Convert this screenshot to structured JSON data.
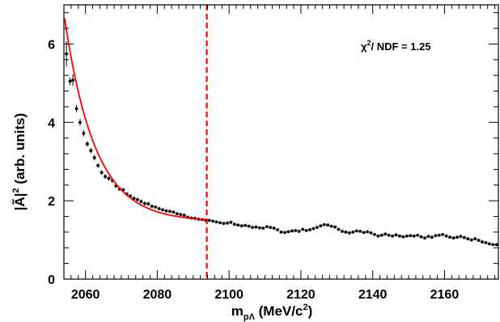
{
  "chart_data": {
    "type": "scatter",
    "xlabel": "m",
    "xlabel_sub": "pΛ",
    "xlabel_unit": " (MeV/c",
    "xlabel_sup": "2",
    "xlabel_close": ")",
    "ylabel": "|Ã|",
    "ylabel_sup": "2",
    "ylabel_rest": " (arb. units)",
    "annotation": {
      "text": "χ",
      "sup": "2",
      "rest": "/ NDF = 1.25"
    },
    "xlim": [
      2054,
      2175
    ],
    "ylim": [
      0,
      7
    ],
    "xticks": [
      2060,
      2080,
      2100,
      2120,
      2140,
      2160
    ],
    "yticks": [
      0,
      2,
      4,
      6
    ],
    "cut_line": {
      "x": 2093.8,
      "color": "#ff0000",
      "style": "dashed"
    },
    "fit": {
      "color": "#ff0000",
      "range": [
        2054.2,
        2093.8
      ],
      "model": "exponential",
      "params": {
        "a": 1.47,
        "b": 4.72,
        "tau": 8.5,
        "x0": 2055
      }
    },
    "series": [
      {
        "color": "#000000",
        "points": [
          [
            2054.7,
            5.75,
            0.32
          ],
          [
            2055.7,
            5.05,
            0.1
          ],
          [
            2056.5,
            5.08,
            0.15
          ],
          [
            2057.5,
            4.35,
            0.09
          ],
          [
            2058.5,
            4.0,
            0.09
          ],
          [
            2059.5,
            3.72,
            0.08
          ],
          [
            2060.5,
            3.45,
            0.07
          ],
          [
            2061.5,
            3.28,
            0.07
          ],
          [
            2062.5,
            3.1,
            0.07
          ],
          [
            2063.5,
            2.9,
            0.06
          ],
          [
            2064.5,
            2.72,
            0.06
          ],
          [
            2065.5,
            2.62,
            0.06
          ],
          [
            2066.5,
            2.57,
            0.06
          ],
          [
            2067.5,
            2.52,
            0.06
          ],
          [
            2068.5,
            2.38,
            0.05
          ],
          [
            2069.5,
            2.3,
            0.05
          ],
          [
            2070.5,
            2.28,
            0.05
          ],
          [
            2071.5,
            2.17,
            0.05
          ],
          [
            2072.5,
            2.12,
            0.05
          ],
          [
            2073.5,
            2.06,
            0.05
          ],
          [
            2074.5,
            2.03,
            0.05
          ],
          [
            2075.5,
            1.98,
            0.05
          ],
          [
            2076.5,
            1.93,
            0.05
          ],
          [
            2077.5,
            1.92,
            0.05
          ],
          [
            2078.5,
            1.86,
            0.04
          ],
          [
            2079.5,
            1.84,
            0.04
          ],
          [
            2080.5,
            1.8,
            0.04
          ],
          [
            2081.5,
            1.77,
            0.04
          ],
          [
            2082.5,
            1.74,
            0.04
          ],
          [
            2083.5,
            1.73,
            0.04
          ],
          [
            2084.5,
            1.71,
            0.04
          ],
          [
            2085.5,
            1.67,
            0.04
          ],
          [
            2086.5,
            1.65,
            0.04
          ],
          [
            2087.5,
            1.63,
            0.04
          ],
          [
            2088.5,
            1.58,
            0.04
          ],
          [
            2089.5,
            1.56,
            0.04
          ],
          [
            2090.5,
            1.55,
            0.04
          ],
          [
            2091.5,
            1.53,
            0.04
          ],
          [
            2092.5,
            1.52,
            0.04
          ],
          [
            2093.5,
            1.5,
            0.04
          ],
          [
            2094.5,
            1.5,
            0.04
          ],
          [
            2095.5,
            1.48,
            0.04
          ],
          [
            2096.5,
            1.46,
            0.04
          ],
          [
            2097.5,
            1.44,
            0.04
          ],
          [
            2098.5,
            1.42,
            0.04
          ],
          [
            2099.5,
            1.43,
            0.04
          ],
          [
            2100.5,
            1.45,
            0.04
          ],
          [
            2101.5,
            1.4,
            0.04
          ],
          [
            2102.5,
            1.38,
            0.04
          ],
          [
            2103.5,
            1.36,
            0.04
          ],
          [
            2104.5,
            1.37,
            0.04
          ],
          [
            2105.5,
            1.35,
            0.04
          ],
          [
            2106.5,
            1.32,
            0.04
          ],
          [
            2107.5,
            1.33,
            0.04
          ],
          [
            2108.5,
            1.31,
            0.04
          ],
          [
            2109.5,
            1.3,
            0.04
          ],
          [
            2110.5,
            1.34,
            0.04
          ],
          [
            2111.5,
            1.32,
            0.04
          ],
          [
            2112.5,
            1.3,
            0.04
          ],
          [
            2113.5,
            1.26,
            0.04
          ],
          [
            2114.5,
            1.2,
            0.04
          ],
          [
            2115.5,
            1.19,
            0.04
          ],
          [
            2116.5,
            1.21,
            0.04
          ],
          [
            2117.5,
            1.23,
            0.04
          ],
          [
            2118.5,
            1.24,
            0.04
          ],
          [
            2119.5,
            1.22,
            0.04
          ],
          [
            2120.5,
            1.27,
            0.04
          ],
          [
            2121.5,
            1.24,
            0.04
          ],
          [
            2122.5,
            1.26,
            0.04
          ],
          [
            2123.5,
            1.29,
            0.04
          ],
          [
            2124.5,
            1.32,
            0.04
          ],
          [
            2125.5,
            1.36,
            0.04
          ],
          [
            2126.5,
            1.39,
            0.04
          ],
          [
            2127.5,
            1.38,
            0.04
          ],
          [
            2128.5,
            1.35,
            0.04
          ],
          [
            2129.5,
            1.33,
            0.04
          ],
          [
            2130.5,
            1.27,
            0.04
          ],
          [
            2131.5,
            1.22,
            0.04
          ],
          [
            2132.5,
            1.2,
            0.04
          ],
          [
            2133.5,
            1.18,
            0.04
          ],
          [
            2134.5,
            1.2,
            0.04
          ],
          [
            2135.5,
            1.23,
            0.04
          ],
          [
            2136.5,
            1.22,
            0.04
          ],
          [
            2137.5,
            1.19,
            0.04
          ],
          [
            2138.5,
            1.21,
            0.04
          ],
          [
            2139.5,
            1.18,
            0.04
          ],
          [
            2140.5,
            1.14,
            0.04
          ],
          [
            2141.5,
            1.1,
            0.04
          ],
          [
            2142.5,
            1.12,
            0.04
          ],
          [
            2143.5,
            1.15,
            0.04
          ],
          [
            2144.5,
            1.12,
            0.04
          ],
          [
            2145.5,
            1.1,
            0.04
          ],
          [
            2146.5,
            1.13,
            0.04
          ],
          [
            2147.5,
            1.1,
            0.04
          ],
          [
            2148.5,
            1.08,
            0.04
          ],
          [
            2149.5,
            1.1,
            0.04
          ],
          [
            2150.5,
            1.11,
            0.04
          ],
          [
            2151.5,
            1.1,
            0.04
          ],
          [
            2152.5,
            1.12,
            0.04
          ],
          [
            2153.5,
            1.08,
            0.04
          ],
          [
            2154.5,
            1.05,
            0.04
          ],
          [
            2155.5,
            1.09,
            0.04
          ],
          [
            2156.5,
            1.07,
            0.04
          ],
          [
            2157.5,
            1.11,
            0.04
          ],
          [
            2158.5,
            1.12,
            0.04
          ],
          [
            2159.5,
            1.14,
            0.04
          ],
          [
            2160.5,
            1.1,
            0.04
          ],
          [
            2161.5,
            1.07,
            0.04
          ],
          [
            2162.5,
            1.05,
            0.04
          ],
          [
            2163.5,
            1.07,
            0.04
          ],
          [
            2164.5,
            1.09,
            0.04
          ],
          [
            2165.5,
            1.06,
            0.04
          ],
          [
            2166.5,
            1.03,
            0.04
          ],
          [
            2167.5,
            1.0,
            0.04
          ],
          [
            2168.5,
            1.03,
            0.04
          ],
          [
            2169.5,
            0.99,
            0.04
          ],
          [
            2170.5,
            0.95,
            0.04
          ],
          [
            2171.5,
            0.93,
            0.04
          ],
          [
            2172.5,
            0.9,
            0.04
          ],
          [
            2173.5,
            0.88,
            0.04
          ],
          [
            2174.5,
            0.88,
            0.04
          ]
        ]
      }
    ]
  }
}
